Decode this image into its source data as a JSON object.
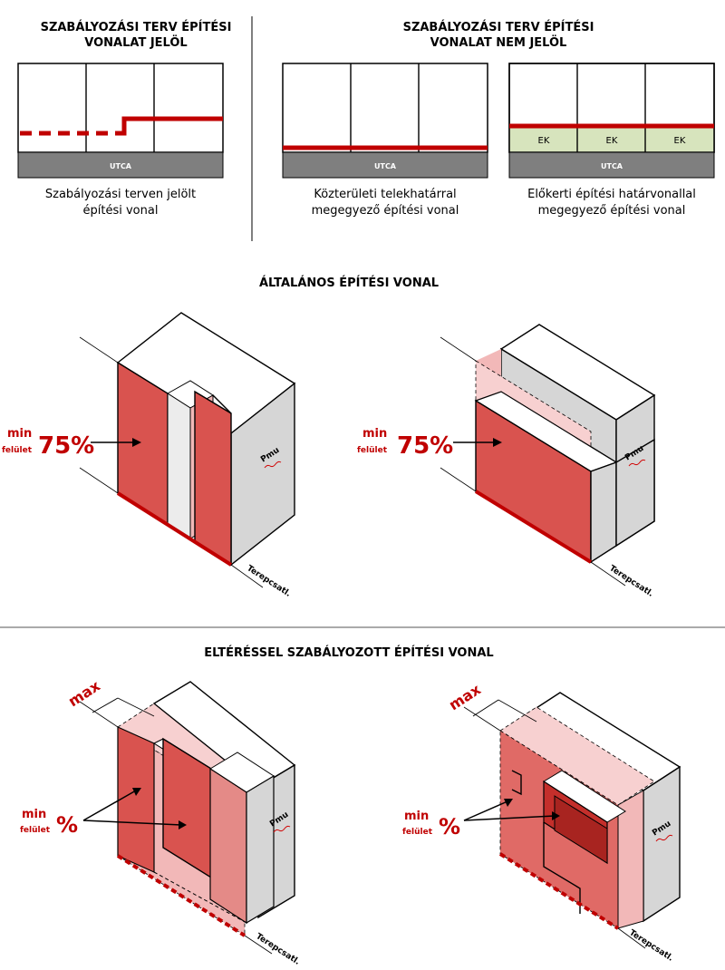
{
  "colors": {
    "red_line": "#c00000",
    "red_face": "#d9534f",
    "pink_face": "#f2b8b8",
    "grey_face": "#d6d6d6",
    "street": "#7f7f7f",
    "ek_fill": "#d7e4bd"
  },
  "top": {
    "left_header": [
      "SZABÁLYOZÁSI TERV ÉPÍTÉSI",
      "VONALAT JELÖL"
    ],
    "right_header": [
      "SZABÁLYOZÁSI TERV ÉPÍTÉSI",
      "VONALAT NEM JELÖL"
    ],
    "street_label": "UTCA",
    "ek_label": "EK",
    "panel1_caption": [
      "Szabályozási terven jelölt",
      "építési vonal"
    ],
    "panel2_caption": [
      "Közterületi telekhatárral",
      "megegyező építési vonal"
    ],
    "panel3_caption": [
      "Előkerti építési határvonallal",
      "megegyező építési vonal"
    ]
  },
  "middle": {
    "title": "ÁLTALÁNOS ÉPÍTÉSI VONAL",
    "min_label": "min",
    "surface_label": "felület",
    "percent_label": "75%",
    "pmu_label": "Pmu",
    "terep_label": "Terepcsatl."
  },
  "bottom": {
    "title": "ELTÉRÉSSEL SZABÁLYOZOTT ÉPÍTÉSI VONAL",
    "max_label": "max",
    "min_label": "min",
    "surface_label": "felület",
    "percent_label": "%",
    "pmu_label": "Pmu",
    "terep_label": "Terepcsatl."
  }
}
